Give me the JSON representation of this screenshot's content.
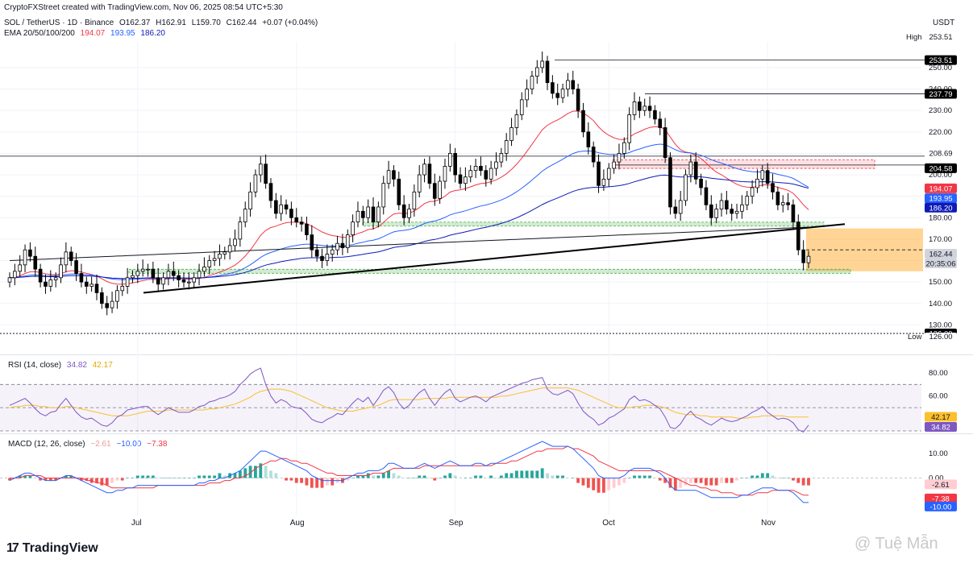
{
  "credit": "CryptoFXStreet created with TradingView.com, Nov 06, 2025 08:54 UTC+5:30",
  "currency": "USDT",
  "symbol_line": {
    "pair": "SOL / TetherUS · 1D · Binance",
    "open": "O162.37",
    "high": "H162.91",
    "low": "L159.70",
    "close": "C162.44",
    "change": "+0.07 (+0.04%)"
  },
  "ema_line": {
    "label": "EMA 20/50/100/200",
    "v20": "194.07",
    "v50": "193.95",
    "v100": "186.20"
  },
  "rsi_line": {
    "label": "RSI (14, close)",
    "rsi": "34.82",
    "ma": "42.17"
  },
  "macd_line": {
    "label": "MACD (12, 26, close)",
    "hist": "−2.61",
    "macd": "−10.00",
    "signal": "−7.38"
  },
  "high_label": "High",
  "high_value": "253.51",
  "low_label": "Low",
  "low_value": "126.00",
  "footer": {
    "brand": "TradingView",
    "watermark": "@ Tuệ Mẫn"
  },
  "colors": {
    "up": "#ffffff",
    "down": "#000000",
    "ema20": "#f23645",
    "ema50": "#2962ff",
    "ema100": "#0d1bb5",
    "ema200": "#131722",
    "rsi": "#7e57c2",
    "rsi_ma": "#fbc02d",
    "macd": "#2962ff",
    "signal": "#f23645",
    "hist_up": "#26a69a",
    "hist_down": "#ef5350",
    "support": "#4caf50",
    "resistance": "#f23645",
    "target_zone": "#ffb74d"
  },
  "chart_data": [
    {
      "type": "candlestick",
      "title": "SOL / TetherUS · 1D · Binance",
      "x_ticks": [
        "Jul",
        "Aug",
        "Sep",
        "Oct",
        "Nov"
      ],
      "y_ticks": [
        130,
        140,
        150,
        160,
        170,
        180,
        190,
        200,
        210,
        220,
        230,
        240,
        250
      ],
      "y_tick_labels": [
        "130.00",
        "140.00",
        "150.00",
        "160.00",
        "170.00",
        "180.00",
        "190.00",
        "200.00",
        "210.00",
        "220.00",
        "230.00",
        "240.00",
        "250.00"
      ],
      "ylim": [
        120,
        262
      ],
      "date_range": [
        "2025-06-06",
        "2025-11-06"
      ],
      "close_series_approx": [
        152,
        155,
        158,
        165,
        162,
        156,
        150,
        148,
        151,
        152,
        158,
        164,
        160,
        154,
        150,
        148,
        149,
        145,
        140,
        138,
        141,
        146,
        148,
        152,
        153,
        155,
        156,
        156,
        152,
        149,
        152,
        155,
        153,
        151,
        150,
        150,
        152,
        155,
        157,
        160,
        161,
        163,
        164,
        167,
        170,
        178,
        184,
        192,
        200,
        205,
        196,
        188,
        182,
        186,
        184,
        180,
        178,
        177,
        172,
        165,
        162,
        160,
        163,
        165,
        168,
        166,
        172,
        178,
        183,
        180,
        185,
        178,
        185,
        196,
        202,
        198,
        186,
        180,
        184,
        192,
        200,
        205,
        196,
        189,
        197,
        204,
        210,
        200,
        196,
        199,
        202,
        204,
        202,
        198,
        203,
        206,
        210,
        216,
        222,
        228,
        235,
        240,
        246,
        250,
        253,
        243,
        238,
        236,
        240,
        244,
        240,
        230,
        220,
        213,
        206,
        195,
        198,
        203,
        206,
        210,
        215,
        228,
        234,
        230,
        232,
        230,
        226,
        222,
        208,
        185,
        182,
        188,
        200,
        206,
        198,
        194,
        186,
        180,
        184,
        188,
        184,
        182,
        183,
        186,
        190,
        194,
        198,
        202,
        196,
        192,
        186,
        187,
        186,
        178,
        165,
        159,
        162
      ],
      "ema": [
        {
          "name": "EMA 20",
          "last": 194.07
        },
        {
          "name": "EMA 50",
          "last": 193.95
        },
        {
          "name": "EMA 100",
          "last": 186.2
        },
        {
          "name": "EMA 200"
        }
      ],
      "price_labels": [
        "253.51",
        "237.79",
        "208.69",
        "204.58",
        "194.07",
        "193.95",
        "186.20",
        "162.44",
        "20:35:06",
        "126.00"
      ],
      "levels": [
        {
          "value": 253.51,
          "kind": "horizontal"
        },
        {
          "value": 237.79,
          "kind": "horizontal"
        },
        {
          "value": 208.69,
          "kind": "horizontal"
        },
        {
          "value": 204.58,
          "kind": "resistance-zone",
          "range": [
            203,
            207
          ]
        },
        {
          "value": 177,
          "kind": "support-zone"
        },
        {
          "value": 155,
          "kind": "support-zone"
        },
        {
          "value": 126.0,
          "kind": "horizontal-dotted"
        },
        {
          "value": 165,
          "kind": "horizontal-dashed"
        }
      ],
      "trendline": {
        "from": 145,
        "to": 177
      },
      "target_zone": [
        155,
        175
      ]
    },
    {
      "type": "line",
      "title": "RSI (14, close)",
      "y_ticks": [
        60,
        80
      ],
      "y_tick_labels": [
        "60.00",
        "80.00"
      ],
      "ylim": [
        30,
        82
      ],
      "band": [
        30,
        70
      ],
      "series": [
        {
          "name": "RSI",
          "last": 34.82
        },
        {
          "name": "MA",
          "last": 42.17
        }
      ],
      "rsi_series_approx": [
        52,
        54,
        56,
        58,
        54,
        49,
        45,
        43,
        46,
        47,
        53,
        58,
        52,
        46,
        42,
        40,
        41,
        38,
        35,
        34,
        37,
        42,
        44,
        48,
        49,
        50,
        51,
        51,
        47,
        44,
        47,
        50,
        48,
        46,
        46,
        46,
        48,
        51,
        52,
        55,
        56,
        58,
        59,
        61,
        64,
        70,
        74,
        79,
        82,
        84,
        70,
        60,
        54,
        57,
        55,
        51,
        50,
        49,
        45,
        40,
        38,
        37,
        40,
        42,
        45,
        44,
        49,
        54,
        58,
        55,
        59,
        52,
        58,
        65,
        68,
        63,
        54,
        49,
        52,
        58,
        63,
        66,
        58,
        52,
        58,
        63,
        66,
        58,
        55,
        57,
        59,
        60,
        58,
        55,
        59,
        61,
        63,
        65,
        67,
        69,
        71,
        72,
        74,
        75,
        76,
        66,
        62,
        61,
        63,
        65,
        62,
        54,
        47,
        43,
        40,
        35,
        37,
        41,
        43,
        46,
        49,
        57,
        60,
        56,
        57,
        55,
        52,
        49,
        42,
        33,
        32,
        36,
        43,
        47,
        42,
        40,
        37,
        35,
        38,
        41,
        39,
        38,
        39,
        41,
        43,
        46,
        48,
        51,
        46,
        43,
        40,
        41,
        40,
        37,
        31,
        29,
        35
      ],
      "rsi_ma_series_approx": [
        50,
        51,
        51,
        52,
        52,
        52,
        51,
        51,
        50,
        50,
        50,
        51,
        51,
        50,
        49,
        48,
        47,
        46,
        45,
        44,
        43,
        43,
        43,
        43,
        44,
        45,
        46,
        47,
        47,
        47,
        47,
        48,
        48,
        48,
        48,
        48,
        48,
        48,
        48,
        49,
        49,
        50,
        51,
        52,
        53,
        55,
        57,
        59,
        62,
        64,
        65,
        66,
        66,
        66,
        65,
        64,
        62,
        60,
        58,
        56,
        54,
        52,
        50,
        49,
        48,
        47,
        47,
        47,
        48,
        49,
        50,
        51,
        52,
        54,
        56,
        57,
        57,
        57,
        57,
        57,
        57,
        58,
        58,
        58,
        58,
        58,
        59,
        59,
        59,
        59,
        59,
        59,
        59,
        59,
        59,
        59,
        60,
        60,
        61,
        62,
        63,
        64,
        65,
        66,
        67,
        67,
        67,
        67,
        67,
        67,
        66,
        65,
        63,
        61,
        59,
        57,
        55,
        53,
        51,
        50,
        50,
        50,
        51,
        51,
        52,
        52,
        52,
        51,
        50,
        48,
        46,
        45,
        44,
        44,
        44,
        43,
        43,
        42,
        42,
        42,
        42,
        42,
        41,
        41,
        41,
        42,
        42,
        43,
        43,
        43,
        43,
        43,
        42,
        42,
        42,
        42,
        42
      ]
    },
    {
      "type": "line",
      "title": "MACD (12, 26, close)",
      "y_ticks": [
        0,
        10
      ],
      "y_tick_labels": [
        "0.00",
        "10.00"
      ],
      "ylim": [
        -14,
        15
      ],
      "series": [
        {
          "name": "Histogram",
          "last": -2.61
        },
        {
          "name": "MACD",
          "last": -10.0
        },
        {
          "name": "Signal",
          "last": -7.38
        }
      ],
      "macd_series_approx": [
        -1,
        0,
        1,
        2,
        2,
        1,
        0,
        -1,
        -1,
        -1,
        0,
        1,
        1,
        0,
        -1,
        -2,
        -3,
        -4,
        -5,
        -6,
        -6,
        -5,
        -5,
        -4,
        -4,
        -3,
        -3,
        -3,
        -3,
        -3,
        -3,
        -3,
        -3,
        -3,
        -3,
        -3,
        -3,
        -2,
        -2,
        -1,
        -1,
        0,
        0,
        1,
        2,
        3,
        5,
        7,
        9,
        11,
        11,
        10,
        9,
        8,
        7,
        6,
        5,
        4,
        3,
        1,
        0,
        -1,
        -1,
        -1,
        -1,
        -1,
        0,
        1,
        2,
        2,
        3,
        3,
        3,
        4,
        6,
        6,
        5,
        4,
        4,
        4,
        5,
        6,
        5,
        4,
        5,
        6,
        7,
        6,
        5,
        5,
        5,
        6,
        6,
        5,
        6,
        6,
        7,
        8,
        9,
        10,
        11,
        12,
        13,
        14,
        15,
        14,
        13,
        13,
        13,
        13,
        12,
        10,
        8,
        6,
        4,
        1,
        0,
        0,
        0,
        0,
        1,
        3,
        4,
        4,
        4,
        4,
        3,
        2,
        0,
        -3,
        -5,
        -5,
        -5,
        -5,
        -5,
        -6,
        -7,
        -8,
        -8,
        -8,
        -8,
        -8,
        -8,
        -7,
        -7,
        -6,
        -5,
        -4,
        -4,
        -4,
        -5,
        -5,
        -5,
        -6,
        -8,
        -10,
        -10
      ],
      "signal_series_approx": [
        0,
        0,
        0,
        1,
        1,
        1,
        1,
        0,
        0,
        0,
        0,
        0,
        0,
        0,
        0,
        -1,
        -1,
        -2,
        -2,
        -3,
        -4,
        -4,
        -4,
        -4,
        -4,
        -4,
        -4,
        -4,
        -4,
        -3,
        -3,
        -3,
        -3,
        -3,
        -3,
        -3,
        -3,
        -3,
        -3,
        -2,
        -2,
        -2,
        -1,
        -1,
        0,
        0,
        1,
        2,
        4,
        5,
        6,
        7,
        7,
        8,
        8,
        7,
        7,
        6,
        6,
        5,
        4,
        3,
        2,
        2,
        1,
        1,
        1,
        1,
        1,
        1,
        1,
        2,
        2,
        2,
        3,
        4,
        4,
        4,
        4,
        4,
        4,
        5,
        5,
        5,
        5,
        5,
        5,
        5,
        5,
        5,
        5,
        5,
        5,
        5,
        5,
        6,
        6,
        6,
        7,
        7,
        8,
        9,
        10,
        11,
        11,
        12,
        12,
        12,
        12,
        13,
        12,
        12,
        11,
        10,
        9,
        7,
        6,
        5,
        4,
        3,
        3,
        3,
        3,
        3,
        3,
        3,
        3,
        3,
        2,
        1,
        0,
        -1,
        -2,
        -3,
        -3,
        -4,
        -4,
        -5,
        -5,
        -6,
        -6,
        -6,
        -7,
        -7,
        -7,
        -7,
        -6,
        -6,
        -6,
        -5,
        -5,
        -5,
        -5,
        -5,
        -6,
        -7,
        -7
      ]
    }
  ]
}
